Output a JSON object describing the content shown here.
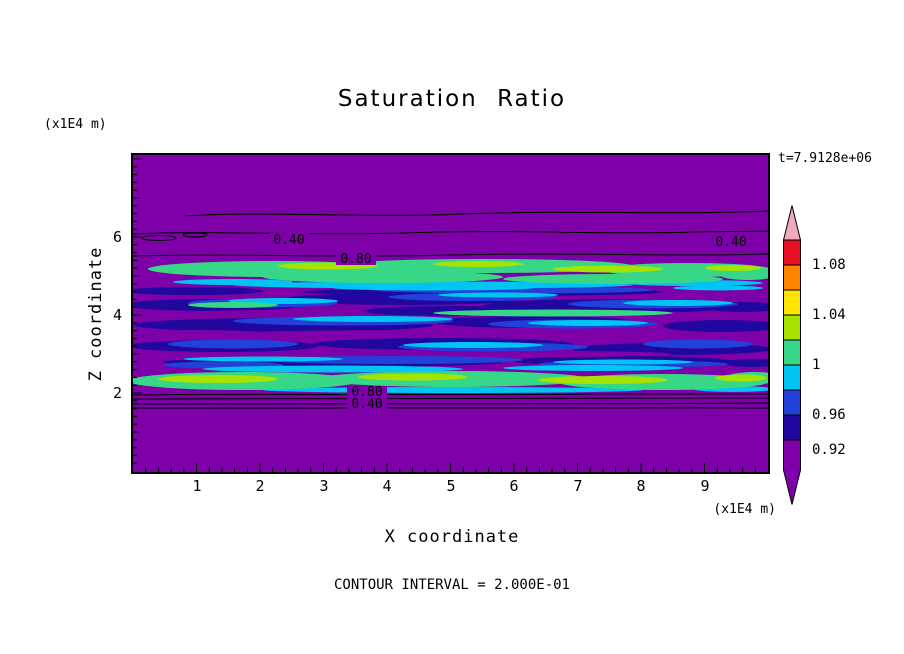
{
  "title": "Saturation Ratio",
  "time_label": "t=7.9128e+06",
  "footer": "CONTOUR INTERVAL = 2.000E-01",
  "x_axis": {
    "label": "X coordinate",
    "unit": "(x1E4 m)",
    "ticks": [
      "1",
      "2",
      "3",
      "4",
      "5",
      "6",
      "7",
      "8",
      "9"
    ]
  },
  "y_axis": {
    "label": "Z coordinate",
    "unit": "(x1E4 m)",
    "ticks": [
      "6",
      "4",
      "2"
    ]
  },
  "colorbar": {
    "labels": [
      "1.08",
      "1.04",
      "1",
      "0.96",
      "0.92"
    ],
    "colors": [
      "#efa8bc",
      "#e71123",
      "#ff8500",
      "#ffe400",
      "#a6e300",
      "#38d787",
      "#00c4f2",
      "#2141d8",
      "#22079e",
      "#7d00a8"
    ]
  },
  "contour_labels": [
    "0.40",
    "0.80",
    "0.40",
    "0.80",
    "0.40"
  ],
  "chart_data": {
    "type": "heatmap",
    "title": "Saturation Ratio",
    "xlabel": "X coordinate",
    "ylabel": "Z coordinate",
    "x_unit": "x1E4 m",
    "y_unit": "x1E4 m",
    "xlim": [
      0,
      10
    ],
    "ylim": [
      0,
      8
    ],
    "x_ticks": [
      1,
      2,
      3,
      4,
      5,
      6,
      7,
      8,
      9
    ],
    "y_ticks": [
      2,
      4,
      6
    ],
    "time_annotation": "t=7.9128e+06",
    "contour_interval": 0.2,
    "labeled_contours": [
      0.4,
      0.8
    ],
    "colorbar": {
      "tick_labels": [
        1.08,
        1.04,
        1,
        0.96,
        0.92
      ],
      "colors_top_to_bottom": [
        "#efa8bc",
        "#e71123",
        "#ff8500",
        "#ffe400",
        "#a6e300",
        "#38d787",
        "#00c4f2",
        "#2141d8",
        "#22079e",
        "#7d00a8"
      ],
      "arrow_high_color": "#efa8bc",
      "arrow_low_color": "#7d00a8"
    },
    "layers": [
      {
        "z_from": 5.6,
        "z_to": 8.1,
        "description": "uniform low-saturation purple background; wavy labeled 0.40 contour lines near z=6"
      },
      {
        "z_from": 4.9,
        "z_to": 5.6,
        "description": "bright green / yellow-green high-saturation band with cyan fringes; 0.80 contour at its upper edge"
      },
      {
        "z_from": 2.4,
        "z_to": 4.9,
        "description": "heterogeneous horizontal streaky lenses of dark blue, blue and cyan in a purple matrix with one green streak mid-depth"
      },
      {
        "z_from": 2.0,
        "z_to": 2.4,
        "description": "bright green / yellow-green band spanning full width with cyan fringes"
      },
      {
        "z_from": 0,
        "z_to": 1.9,
        "description": "uniform purple; stacked 0.80 and 0.40 contour lines just below z=2"
      }
    ]
  }
}
